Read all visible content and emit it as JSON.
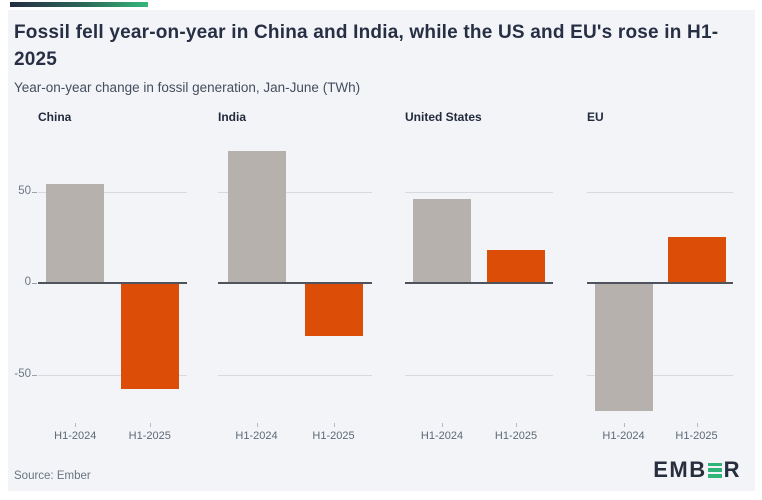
{
  "header": {
    "title": "Fossil fell year-on-year in China and India, while the US and EU's rose in H1-2025",
    "subtitle": "Year-on-year change in fossil generation, Jan-June (TWh)"
  },
  "chart_data": {
    "type": "bar",
    "title": "Fossil fell year-on-year in China and India, while the US and EU's rose in H1-2025",
    "subtitle": "Year-on-year change in fossil generation, Jan-June (TWh)",
    "unit": "TWh",
    "categories": [
      "H1-2024",
      "H1-2025"
    ],
    "panels": [
      {
        "name": "China",
        "values": [
          54,
          -58
        ]
      },
      {
        "name": "India",
        "values": [
          72,
          -29
        ]
      },
      {
        "name": "United States",
        "values": [
          46,
          18
        ]
      },
      {
        "name": "EU",
        "values": [
          -70,
          25
        ]
      }
    ],
    "series_colors": [
      "#b7b1ae",
      "#dc4e08"
    ],
    "y_ticks": [
      50,
      0,
      -50
    ],
    "y_tick_labels": [
      "50",
      "0",
      "-50"
    ],
    "ylim": [
      -76,
      78
    ],
    "grid": "horizontal lines at +50 and -50, dark zero baseline per panel",
    "legend": "none"
  },
  "footer": {
    "source": "Source: Ember",
    "logo_prefix": "EMB",
    "logo_suffix": "R"
  },
  "colors": {
    "background_card": "#f3f4f7",
    "accent_navy": "#242d42",
    "accent_green": "#35b77b",
    "bar_gray": "#b7b1ae",
    "bar_orange": "#dc4e08"
  }
}
